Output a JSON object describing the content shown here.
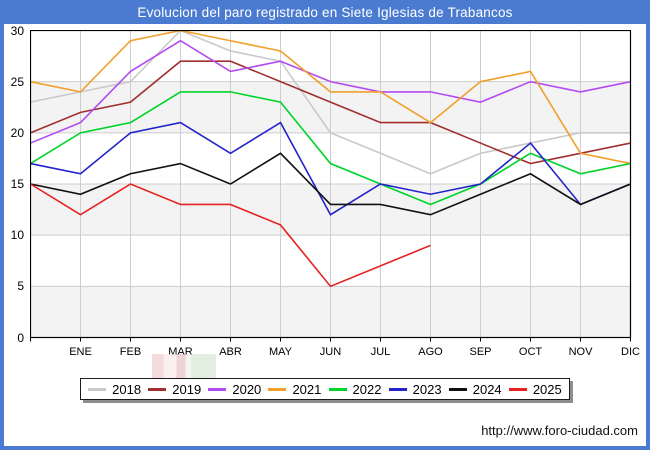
{
  "title": "Evolucion del paro registrado en Siete Iglesias de Trabancos",
  "footer": {
    "url_label": "http://www.foro-ciudad.com"
  },
  "colors": {
    "frame_blue": "#4b7bd0",
    "band_gray": "#f3f3f3",
    "grid": "#cdcdcd",
    "plot_border": "#000000",
    "legend_shadow": "#8f8f8f"
  },
  "chart_data": {
    "type": "line",
    "title": "Evolucion del paro registrado en Siete Iglesias de Trabancos",
    "categories": [
      "ENE",
      "FEB",
      "MAR",
      "ABR",
      "MAY",
      "JUN",
      "JUL",
      "AGO",
      "SEP",
      "OCT",
      "NOV",
      "DIC"
    ],
    "leading_point_note": "each series starts on the left axis with the previous December value, then one point per month",
    "ylim": [
      0,
      30
    ],
    "yticks": [
      0,
      5,
      10,
      15,
      20,
      25,
      30
    ],
    "grid": true,
    "legend_position": "bottom",
    "series": [
      {
        "name": "2018",
        "color": "#c9c9c9",
        "values": [
          23,
          24,
          25,
          30,
          28,
          27,
          20,
          18,
          16,
          18,
          19,
          20,
          20
        ]
      },
      {
        "name": "2019",
        "color": "#a03030",
        "values": [
          20,
          22,
          23,
          27,
          27,
          25,
          23,
          21,
          21,
          19,
          17,
          18,
          19
        ]
      },
      {
        "name": "2020",
        "color": "#b44bf0",
        "values": [
          19,
          21,
          26,
          29,
          26,
          27,
          25,
          24,
          24,
          23,
          25,
          24,
          25
        ]
      },
      {
        "name": "2021",
        "color": "#f2a02c",
        "values": [
          25,
          24,
          29,
          30,
          29,
          28,
          24,
          24,
          21,
          25,
          26,
          18,
          17
        ]
      },
      {
        "name": "2022",
        "color": "#00d42a",
        "values": [
          17,
          20,
          21,
          24,
          24,
          23,
          17,
          15,
          13,
          15,
          18,
          16,
          17
        ]
      },
      {
        "name": "2023",
        "color": "#2323cc",
        "values": [
          17,
          16,
          20,
          21,
          18,
          21,
          12,
          15,
          14,
          15,
          19,
          13,
          15
        ]
      },
      {
        "name": "2024",
        "color": "#101010",
        "values": [
          15,
          14,
          16,
          17,
          15,
          18,
          13,
          13,
          12,
          14,
          16,
          13,
          15
        ]
      },
      {
        "name": "2025",
        "color": "#e62222",
        "values": [
          15,
          12,
          15,
          13,
          13,
          11,
          5,
          7,
          9
        ]
      }
    ]
  }
}
